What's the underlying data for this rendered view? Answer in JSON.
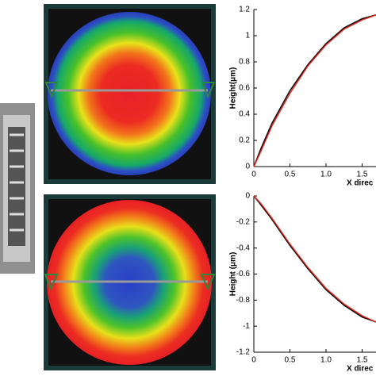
{
  "chart_data": [
    {
      "type": "line",
      "ylabel": "Height(μm)",
      "xlabel": "X direc",
      "x": [
        0,
        0.1,
        0.25,
        0.5,
        0.75,
        1,
        1.25,
        1.5,
        1.7
      ],
      "series": [
        {
          "color": "#000000",
          "values": [
            0,
            0.14,
            0.33,
            0.58,
            0.78,
            0.94,
            1.06,
            1.13,
            1.16
          ]
        },
        {
          "color": "#e0241b",
          "values": [
            0,
            0.12,
            0.31,
            0.56,
            0.77,
            0.93,
            1.05,
            1.12,
            1.16
          ]
        }
      ],
      "xlim": [
        0,
        2
      ],
      "xticks": [
        0,
        0.5,
        {
          "value": 1,
          "label": "1.0"
        },
        1.5
      ],
      "ylim": [
        0,
        1.2
      ],
      "yticks": [
        0,
        0.2,
        0.4,
        0.6,
        0.8,
        1,
        1.2
      ]
    },
    {
      "type": "line",
      "ylabel": "Height (μm)",
      "xlabel": "X direc",
      "x": [
        0,
        0.1,
        0.25,
        0.5,
        0.75,
        1,
        1.25,
        1.5,
        1.7
      ],
      "series": [
        {
          "color": "#000000",
          "values": [
            0,
            -0.07,
            -0.18,
            -0.38,
            -0.56,
            -0.72,
            -0.84,
            -0.93,
            -0.97
          ]
        },
        {
          "color": "#e0241b",
          "values": [
            0,
            -0.06,
            -0.17,
            -0.37,
            -0.55,
            -0.71,
            -0.83,
            -0.92,
            -0.97
          ]
        }
      ],
      "xlim": [
        0,
        2
      ],
      "xticks": [
        0,
        0.5,
        {
          "value": 1,
          "label": "1.0"
        },
        1.5
      ],
      "ylim": [
        -1.2,
        0
      ],
      "yticks": [
        0,
        -0.2,
        -0.4,
        -0.6,
        -0.8,
        -1,
        -1.2
      ]
    }
  ]
}
